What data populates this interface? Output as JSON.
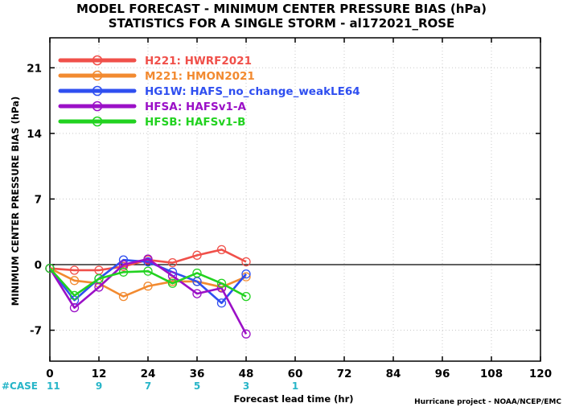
{
  "chart_data": {
    "type": "line",
    "title": "MODEL FORECAST - MINIMUM CENTER PRESSURE BIAS (hPa)",
    "subtitle": "STATISTICS FOR A SINGLE STORM - al172021_ROSE",
    "xlabel": "Forecast lead time (hr)",
    "ylabel": "MINIMUM CENTER PRESSURE BIAS (hPa)",
    "xlim": [
      0,
      120
    ],
    "ylim": [
      -10.3,
      24.2
    ],
    "x_ticks": [
      "0",
      "12",
      "24",
      "36",
      "48",
      "60",
      "72",
      "84",
      "96",
      "108",
      "120"
    ],
    "y_ticks": [
      "-7",
      "0",
      "7",
      "14",
      "21"
    ],
    "x_tick_values": [
      0,
      12,
      24,
      36,
      48,
      60,
      72,
      84,
      96,
      108,
      120
    ],
    "y_tick_values": [
      -7,
      0,
      7,
      14,
      21
    ],
    "grid": true,
    "legend_position": "top-left",
    "case_label": "#CASE",
    "case_x": [
      0,
      12,
      24,
      36,
      48,
      60
    ],
    "case_counts": [
      "11",
      "9",
      "7",
      "5",
      "3",
      "1"
    ],
    "credit": "Hurricane project - NOAA/NCEP/EMC",
    "x": [
      0,
      6,
      12,
      18,
      24,
      30,
      36,
      42,
      48
    ],
    "series": [
      {
        "code": "H221:",
        "name": "HWRF2021",
        "color": "#f0504a",
        "values": [
          -0.4,
          -0.6,
          -0.6,
          -0.2,
          0.5,
          0.2,
          1.0,
          1.6,
          0.3
        ]
      },
      {
        "code": "M221:",
        "name": "HMON2021",
        "color": "#f28a30",
        "values": [
          -0.4,
          -1.7,
          -2.0,
          -3.4,
          -2.3,
          -1.8,
          -1.8,
          -2.4,
          -1.3
        ]
      },
      {
        "code": "HG1W:",
        "name": "HAFS_no_change_weakLE64",
        "color": "#2f4ff0",
        "values": [
          -0.4,
          -3.8,
          -1.5,
          0.5,
          0.3,
          -0.8,
          -1.8,
          -4.1,
          -1.0
        ]
      },
      {
        "code": "HFSA:",
        "name": "HAFSv1-A",
        "color": "#9b10c7",
        "values": [
          -0.4,
          -4.6,
          -2.4,
          0.0,
          0.6,
          -1.2,
          -3.1,
          -2.5,
          -7.4
        ]
      },
      {
        "code": "HFSB:",
        "name": "HAFSv1-B",
        "color": "#22d220",
        "values": [
          -0.4,
          -3.3,
          -1.5,
          -0.8,
          -0.7,
          -2.0,
          -0.9,
          -2.0,
          -3.4
        ]
      }
    ]
  }
}
